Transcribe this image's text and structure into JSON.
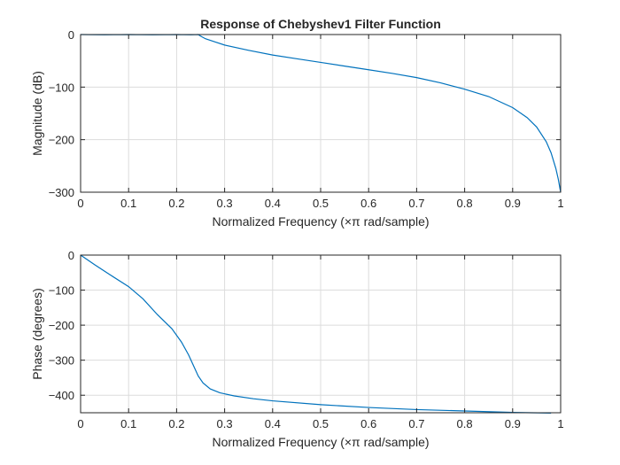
{
  "figure": {
    "title": "Response of Chebyshev1 Filter Function",
    "line_color": "#0072BD"
  },
  "chart_data": [
    {
      "type": "line",
      "title": "Response of Chebyshev1 Filter Function",
      "xlabel": "Normalized Frequency  (×π rad/sample)",
      "ylabel": "Magnitude (dB)",
      "xlim": [
        0,
        1
      ],
      "ylim": [
        -300,
        0
      ],
      "grid": true,
      "xticks": [
        0,
        0.1,
        0.2,
        0.3,
        0.4,
        0.5,
        0.6,
        0.7,
        0.8,
        0.9,
        1
      ],
      "xtick_labels": [
        "0",
        "0.1",
        "0.2",
        "0.3",
        "0.4",
        "0.5",
        "0.6",
        "0.7",
        "0.8",
        "0.9",
        "1"
      ],
      "yticks": [
        0,
        -100,
        -200,
        -300
      ],
      "ytick_labels": [
        "0",
        "−100",
        "−200",
        "−300"
      ],
      "series": [
        {
          "x": [
            0,
            0.05,
            0.1,
            0.15,
            0.2,
            0.23,
            0.245,
            0.25,
            0.26,
            0.28,
            0.3,
            0.35,
            0.4,
            0.45,
            0.5,
            0.55,
            0.6,
            0.65,
            0.7,
            0.75,
            0.8,
            0.85,
            0.9,
            0.93,
            0.95,
            0.97,
            0.98,
            0.99,
            0.995,
            1.0
          ],
          "y": [
            0,
            -0.5,
            0,
            -0.5,
            0,
            -0.5,
            0,
            -3,
            -8,
            -14,
            -20,
            -30,
            -39,
            -46,
            -53,
            -60,
            -67,
            -74,
            -82,
            -92,
            -104,
            -118,
            -139,
            -158,
            -176,
            -204,
            -225,
            -255,
            -275,
            -300
          ]
        }
      ]
    },
    {
      "type": "line",
      "xlabel": "Normalized Frequency  (×π rad/sample)",
      "ylabel": "Phase (degrees)",
      "xlim": [
        0,
        1
      ],
      "ylim": [
        -450,
        0
      ],
      "grid": true,
      "xticks": [
        0,
        0.1,
        0.2,
        0.3,
        0.4,
        0.5,
        0.6,
        0.7,
        0.8,
        0.9,
        1
      ],
      "xtick_labels": [
        "0",
        "0.1",
        "0.2",
        "0.3",
        "0.4",
        "0.5",
        "0.6",
        "0.7",
        "0.8",
        "0.9",
        "1"
      ],
      "yticks": [
        0,
        -100,
        -200,
        -300,
        -400
      ],
      "ytick_labels": [
        "0",
        "−100",
        "−200",
        "−300",
        "−400"
      ],
      "series": [
        {
          "x": [
            0,
            0.03,
            0.06,
            0.1,
            0.13,
            0.16,
            0.19,
            0.21,
            0.225,
            0.235,
            0.245,
            0.255,
            0.27,
            0.29,
            0.32,
            0.36,
            0.4,
            0.5,
            0.6,
            0.7,
            0.8,
            0.9,
            0.98
          ],
          "y": [
            0,
            -28,
            -55,
            -90,
            -125,
            -170,
            -210,
            -248,
            -285,
            -315,
            -345,
            -365,
            -382,
            -393,
            -402,
            -410,
            -416,
            -427,
            -435,
            -441,
            -445,
            -449,
            -451
          ]
        }
      ]
    }
  ]
}
